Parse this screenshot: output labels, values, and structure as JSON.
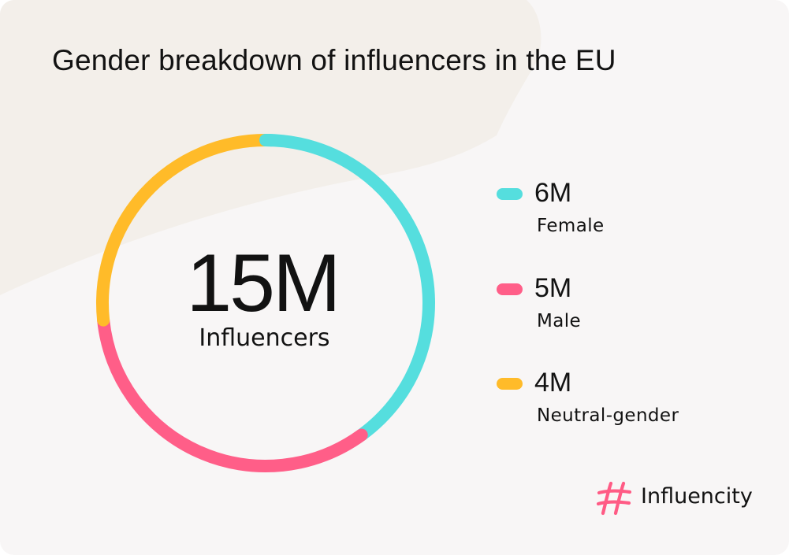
{
  "title": "Gender breakdown of influencers in the EU",
  "center": {
    "value": "15M",
    "label": "Influencers"
  },
  "brand": {
    "name": "Influencity",
    "icon": "hashtag-logo-icon",
    "color": "#ff5b85"
  },
  "background": {
    "card": "#f8f6f6",
    "blob": "#f3efea"
  },
  "chart_data": {
    "type": "pie",
    "variant": "donut",
    "title": "Gender breakdown of influencers in the EU",
    "total_label": "15M",
    "unit": "M",
    "categories": [
      "Female",
      "Male",
      "Neutral-gender"
    ],
    "values": [
      6,
      5,
      4
    ],
    "value_labels": [
      "6M",
      "5M",
      "4M"
    ],
    "colors": [
      "#55dede",
      "#ff5e88",
      "#ffbb29"
    ],
    "legend": "right"
  }
}
